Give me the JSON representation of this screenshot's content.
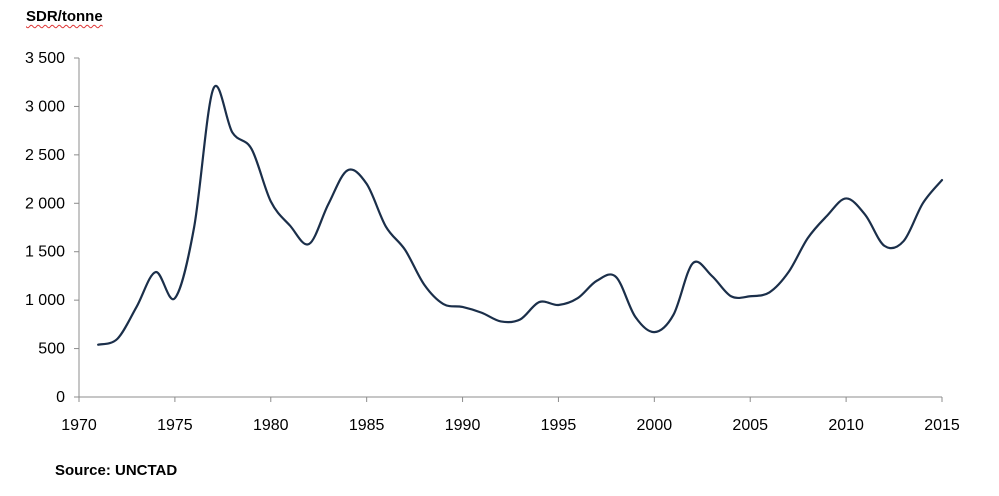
{
  "chart_data": {
    "type": "line",
    "ylabel": "SDR/tonne",
    "source": "Source: UNCTAD",
    "xlim": [
      1970,
      2015
    ],
    "ylim": [
      0,
      3500
    ],
    "x_ticks": [
      "1970",
      "1975",
      "1980",
      "1985",
      "1990",
      "1995",
      "2000",
      "2005",
      "2010",
      "2015"
    ],
    "y_ticks": [
      "0",
      "500",
      "1 000",
      "1 500",
      "2 000",
      "2 500",
      "3 000",
      "3 500"
    ],
    "grid": false,
    "legend": "none",
    "series": [
      {
        "color": "#1b2f4a",
        "x": [
          1971,
          1972,
          1973,
          1974,
          1975,
          1976,
          1977,
          1978,
          1979,
          1980,
          1981,
          1982,
          1983,
          1984,
          1985,
          1986,
          1987,
          1988,
          1989,
          1990,
          1991,
          1992,
          1993,
          1994,
          1995,
          1996,
          1997,
          1998,
          1999,
          2000,
          2001,
          2002,
          2003,
          2004,
          2005,
          2006,
          2007,
          2008,
          2009,
          2010,
          2011,
          2012,
          2013,
          2014,
          2015
        ],
        "values": [
          540,
          600,
          930,
          1290,
          1020,
          1750,
          3180,
          2730,
          2560,
          2020,
          1770,
          1580,
          1990,
          2340,
          2200,
          1760,
          1520,
          1160,
          960,
          930,
          870,
          780,
          800,
          980,
          950,
          1020,
          1200,
          1240,
          830,
          670,
          850,
          1380,
          1250,
          1040,
          1040,
          1080,
          1290,
          1640,
          1870,
          2050,
          1880,
          1560,
          1610,
          2000,
          2240
        ]
      }
    ]
  }
}
